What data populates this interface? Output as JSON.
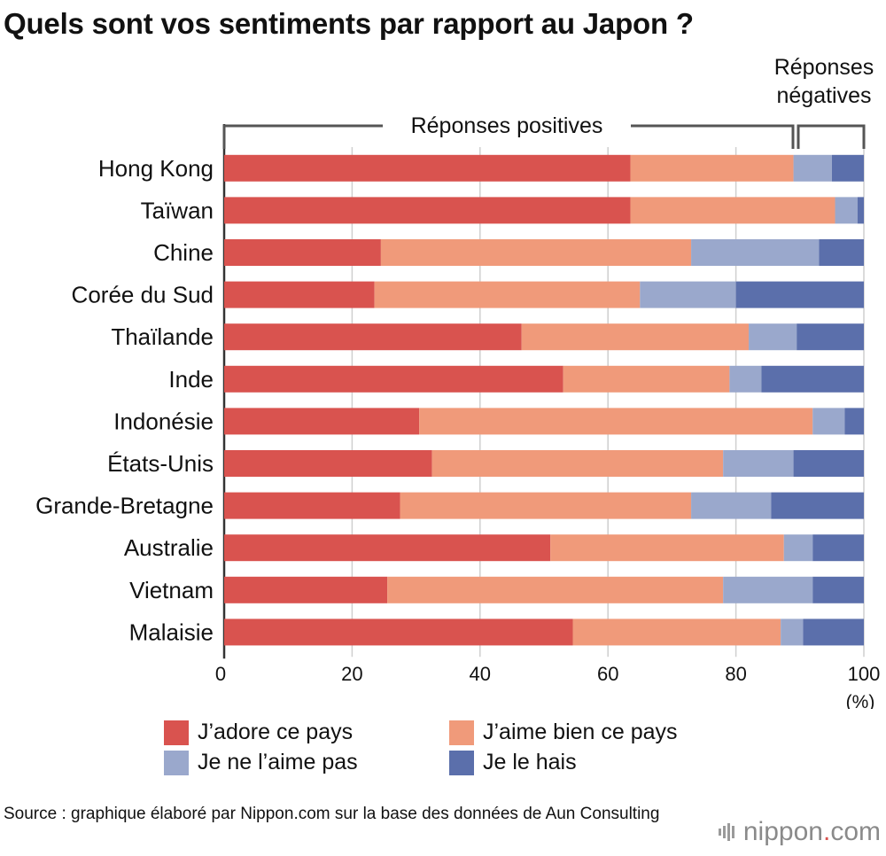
{
  "chart_data": {
    "type": "bar",
    "orientation": "horizontal",
    "stacked": true,
    "title": "Quels sont vos sentiments par rapport au Japon ?",
    "unit": "(%)",
    "xlim": [
      0,
      100
    ],
    "xticks": [
      0,
      20,
      40,
      60,
      80,
      100
    ],
    "grid": true,
    "legend_position": "bottom",
    "annotations": {
      "positive": "Réponses positives",
      "negative": "Réponses négatives"
    },
    "categories": [
      "Hong Kong",
      "Taïwan",
      "Chine",
      "Corée du Sud",
      "Thaïlande",
      "Inde",
      "Indonésie",
      "États-Unis",
      "Grande-Bretagne",
      "Australie",
      "Vietnam",
      "Malaisie"
    ],
    "series": [
      {
        "name": "J’adore ce pays",
        "color": "#d9534f",
        "values": [
          63.5,
          63.5,
          24.5,
          23.5,
          46.5,
          53.0,
          30.5,
          32.5,
          27.5,
          51.0,
          25.5,
          54.5
        ]
      },
      {
        "name": "J’aime bien ce pays",
        "color": "#f09a7a",
        "values": [
          25.5,
          32.0,
          48.5,
          41.5,
          35.5,
          26.0,
          61.5,
          45.5,
          45.5,
          36.5,
          52.5,
          32.5
        ]
      },
      {
        "name": "Je ne l’aime pas",
        "color": "#9aa8cc",
        "values": [
          6.0,
          3.5,
          20.0,
          15.0,
          7.5,
          5.0,
          5.0,
          11.0,
          12.5,
          4.5,
          14.0,
          3.5
        ]
      },
      {
        "name": "Je le hais",
        "color": "#5b6fab",
        "values": [
          5.0,
          1.0,
          7.0,
          20.0,
          10.5,
          16.0,
          3.0,
          11.0,
          14.5,
          8.0,
          8.0,
          9.5
        ]
      }
    ]
  },
  "legend": {
    "items": [
      {
        "label": "J’adore ce pays",
        "color": "#d9534f"
      },
      {
        "label": "J’aime bien ce pays",
        "color": "#f09a7a"
      },
      {
        "label": "Je ne l’aime pas",
        "color": "#9aa8cc"
      },
      {
        "label": "Je le hais",
        "color": "#5b6fab"
      }
    ]
  },
  "footer": {
    "source": "Source : graphique élaboré par Nippon.com sur la base des données de Aun Consulting"
  },
  "logo": {
    "brand": "nippon",
    "dot": ".",
    "suffix": "com"
  }
}
